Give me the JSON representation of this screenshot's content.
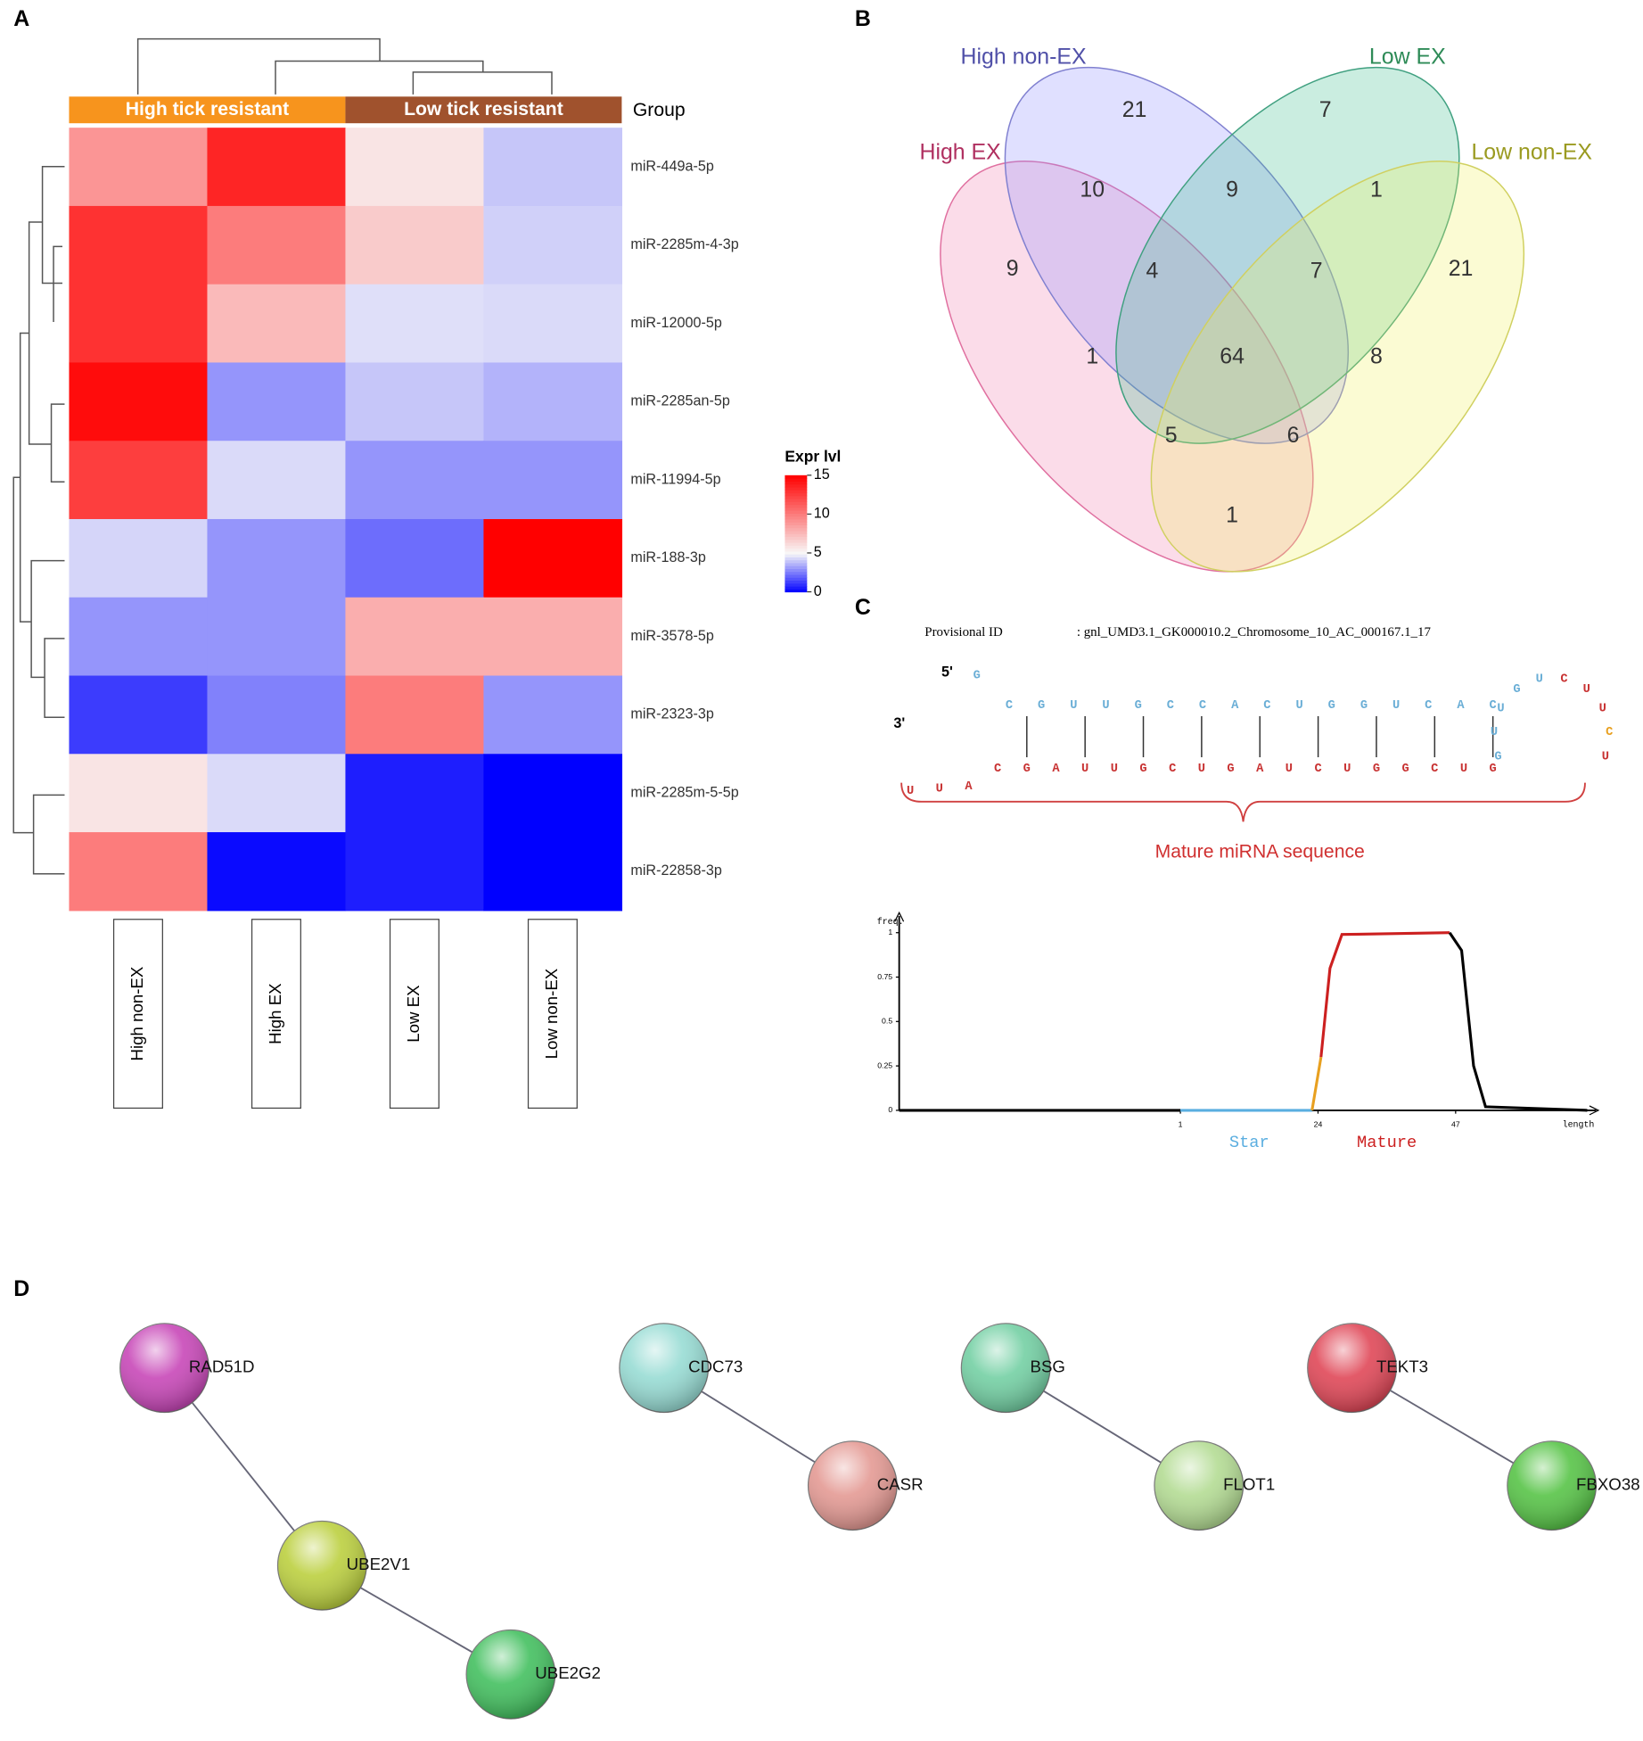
{
  "panel_labels": [
    "A",
    "B",
    "C",
    "D"
  ],
  "heatmap": {
    "group_label": "Group",
    "groups": [
      {
        "name": "High tick resistant",
        "color": "#f7941d",
        "columns": [
          0,
          1
        ]
      },
      {
        "name": "Low tick resistant",
        "color": "#a0522d",
        "columns": [
          2,
          3
        ]
      }
    ],
    "columns": [
      "High non-EX",
      "High EX",
      "Low EX",
      "Low non-EX"
    ],
    "rows": [
      "miR-449a-5p",
      "miR-2285m-4-3p",
      "miR-12000-5p",
      "miR-2285an-5p",
      "miR-11994-5p",
      "miR-188-3p",
      "miR-3578-5p",
      "miR-2323-3p",
      "miR-2285m-5-5p",
      "miR-22858-3p"
    ],
    "values": [
      [
        9,
        13.5,
        5.8,
        4
      ],
      [
        13,
        10,
        6.8,
        4.2
      ],
      [
        13,
        7.5,
        4.5,
        4.4
      ],
      [
        14.5,
        3,
        4,
        3.6
      ],
      [
        12.5,
        4.4,
        3,
        3
      ],
      [
        4.3,
        3,
        2.2,
        15
      ],
      [
        3,
        3,
        8,
        8
      ],
      [
        1.2,
        2.6,
        10,
        3
      ],
      [
        5.8,
        4.4,
        0.6,
        0
      ],
      [
        10,
        0.2,
        0.6,
        0
      ]
    ],
    "color_stops": [
      {
        "value": 0,
        "color": "#0000ff"
      },
      {
        "value": 5,
        "color": "#f8f8f8"
      },
      {
        "value": 15,
        "color": "#ff0000"
      }
    ],
    "colorbar_title": "Expr lvl",
    "colorbar_ticks": [
      0,
      5,
      10,
      15
    ]
  },
  "venn": {
    "sets": [
      {
        "name": "High non-EX",
        "color": "#5050a8"
      },
      {
        "name": "Low EX",
        "color": "#2e8b57"
      },
      {
        "name": "High EX",
        "color": "#b03060"
      },
      {
        "name": "Low non-EX",
        "color": "#9a9a20"
      }
    ],
    "counts": [
      21,
      7,
      10,
      9,
      1,
      9,
      4,
      7,
      21,
      1,
      64,
      8,
      5,
      6,
      1
    ]
  },
  "structure": {
    "id_label": "Provisional ID",
    "id_value": ": gnl_UMD3.1_GK000010.2_Chromosome_10_AC_000167.1_17",
    "five_prime": "5'",
    "three_prime": "3'",
    "top_strand": [
      "G",
      "C",
      "G",
      "U",
      "U",
      "G",
      "C",
      "C",
      "A",
      "C",
      "U",
      "G",
      "G",
      "U",
      "C",
      "A",
      "C"
    ],
    "loop": [
      "G",
      "U",
      "U",
      "G",
      "U",
      "C",
      "U",
      "U",
      "C",
      "U"
    ],
    "bottom_strand": [
      "U",
      "U",
      "A",
      "C",
      "G",
      "A",
      "U",
      "U",
      "G",
      "C",
      "U",
      "G",
      "A",
      "U",
      "C",
      "U",
      "G",
      "G",
      "C",
      "U",
      "G"
    ],
    "top_color": "#6aaed6",
    "bottom_color": "#c83232",
    "mature_label": "Mature miRNA sequence"
  },
  "freq_plot": {
    "ylabel": "freq.",
    "ylim": [
      0,
      1
    ],
    "yticks": [
      0,
      0.25,
      0.5,
      0.75,
      1
    ],
    "xlim": [
      -46,
      69
    ],
    "xticks": [
      1,
      24,
      47
    ],
    "xlabel": "length",
    "star_label": "Star",
    "mature_label": "Mature",
    "segments": [
      {
        "color": "#000000",
        "x": [
          -46,
          1
        ],
        "y": [
          0,
          0
        ]
      },
      {
        "color": "#5aaee0",
        "x": [
          1,
          23
        ],
        "y": [
          0,
          0
        ]
      },
      {
        "color": "#e8a020",
        "x": [
          23,
          24.5
        ],
        "y": [
          0,
          0.3
        ]
      },
      {
        "color": "#cc2020",
        "x": [
          24.5,
          26,
          28,
          46
        ],
        "y": [
          0.3,
          0.8,
          0.99,
          1
        ]
      },
      {
        "color": "#000000",
        "x": [
          46,
          48,
          50,
          52,
          69
        ],
        "y": [
          1,
          0.9,
          0.25,
          0.02,
          0
        ]
      }
    ]
  },
  "network": {
    "nodes": [
      {
        "label": "RAD51D",
        "color": "#c848b8"
      },
      {
        "label": "UBE2V1",
        "color": "#bcd040"
      },
      {
        "label": "UBE2G2",
        "color": "#44c060"
      },
      {
        "label": "CDC73",
        "color": "#98dcd4"
      },
      {
        "label": "CASR",
        "color": "#e49a94"
      },
      {
        "label": "BSG",
        "color": "#74d0a4"
      },
      {
        "label": "FLOT1",
        "color": "#b4dc94"
      },
      {
        "label": "TEKT3",
        "color": "#e04858"
      },
      {
        "label": "FBXO38",
        "color": "#58c448"
      }
    ],
    "edges": [
      [
        0,
        1
      ],
      [
        1,
        2
      ],
      [
        3,
        4
      ],
      [
        5,
        6
      ],
      [
        7,
        8
      ]
    ]
  }
}
